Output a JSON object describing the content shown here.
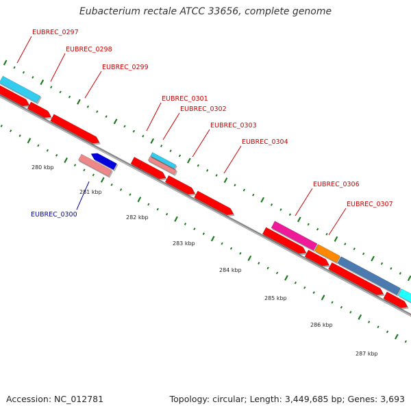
{
  "title": "Eubacterium rectale ATCC 33656, complete genome",
  "footer": {
    "accession": "Accession: NC_012781",
    "summary": "Topology: circular; Length: 3,449,685 bp; Genes: 3,693"
  },
  "colors": {
    "backbone": "#888888",
    "tick": "#1e7a1e",
    "label_forward": "#cc0000",
    "label_reverse": "#0000aa",
    "cds_red": "#ff0000",
    "pink": "#ee8888",
    "light_blue": "#33ccee",
    "blue": "#0000dd",
    "magenta": "#ee1a9a",
    "orange": "#ff8800",
    "steel_blue": "#4a7ab0",
    "cyan": "#22ffff"
  },
  "scale_labels": [
    "280 kbp",
    "281 kbp",
    "282 kbp",
    "283 kbp",
    "284 kbp",
    "285 kbp",
    "286 kbp",
    "287 kbp"
  ],
  "features": [
    {
      "name": "EUBREC_0297",
      "strand": "forward",
      "color": "light_blue"
    },
    {
      "name": "EUBREC_0298",
      "strand": "forward",
      "color": "cds_red"
    },
    {
      "name": "EUBREC_0299",
      "strand": "forward",
      "color": "cds_red"
    },
    {
      "name": "EUBREC_0300",
      "strand": "reverse",
      "color": "blue"
    },
    {
      "name": "EUBREC_0301",
      "strand": "forward",
      "color": "pink"
    },
    {
      "name": "EUBREC_0302",
      "strand": "forward",
      "color": "light_blue"
    },
    {
      "name": "EUBREC_0303",
      "strand": "forward",
      "color": "cds_red"
    },
    {
      "name": "EUBREC_0304",
      "strand": "forward",
      "color": "cds_red"
    },
    {
      "name": "EUBREC_0306",
      "strand": "forward",
      "color": "magenta"
    },
    {
      "name": "EUBREC_0307",
      "strand": "forward",
      "color": "steel_blue"
    }
  ]
}
